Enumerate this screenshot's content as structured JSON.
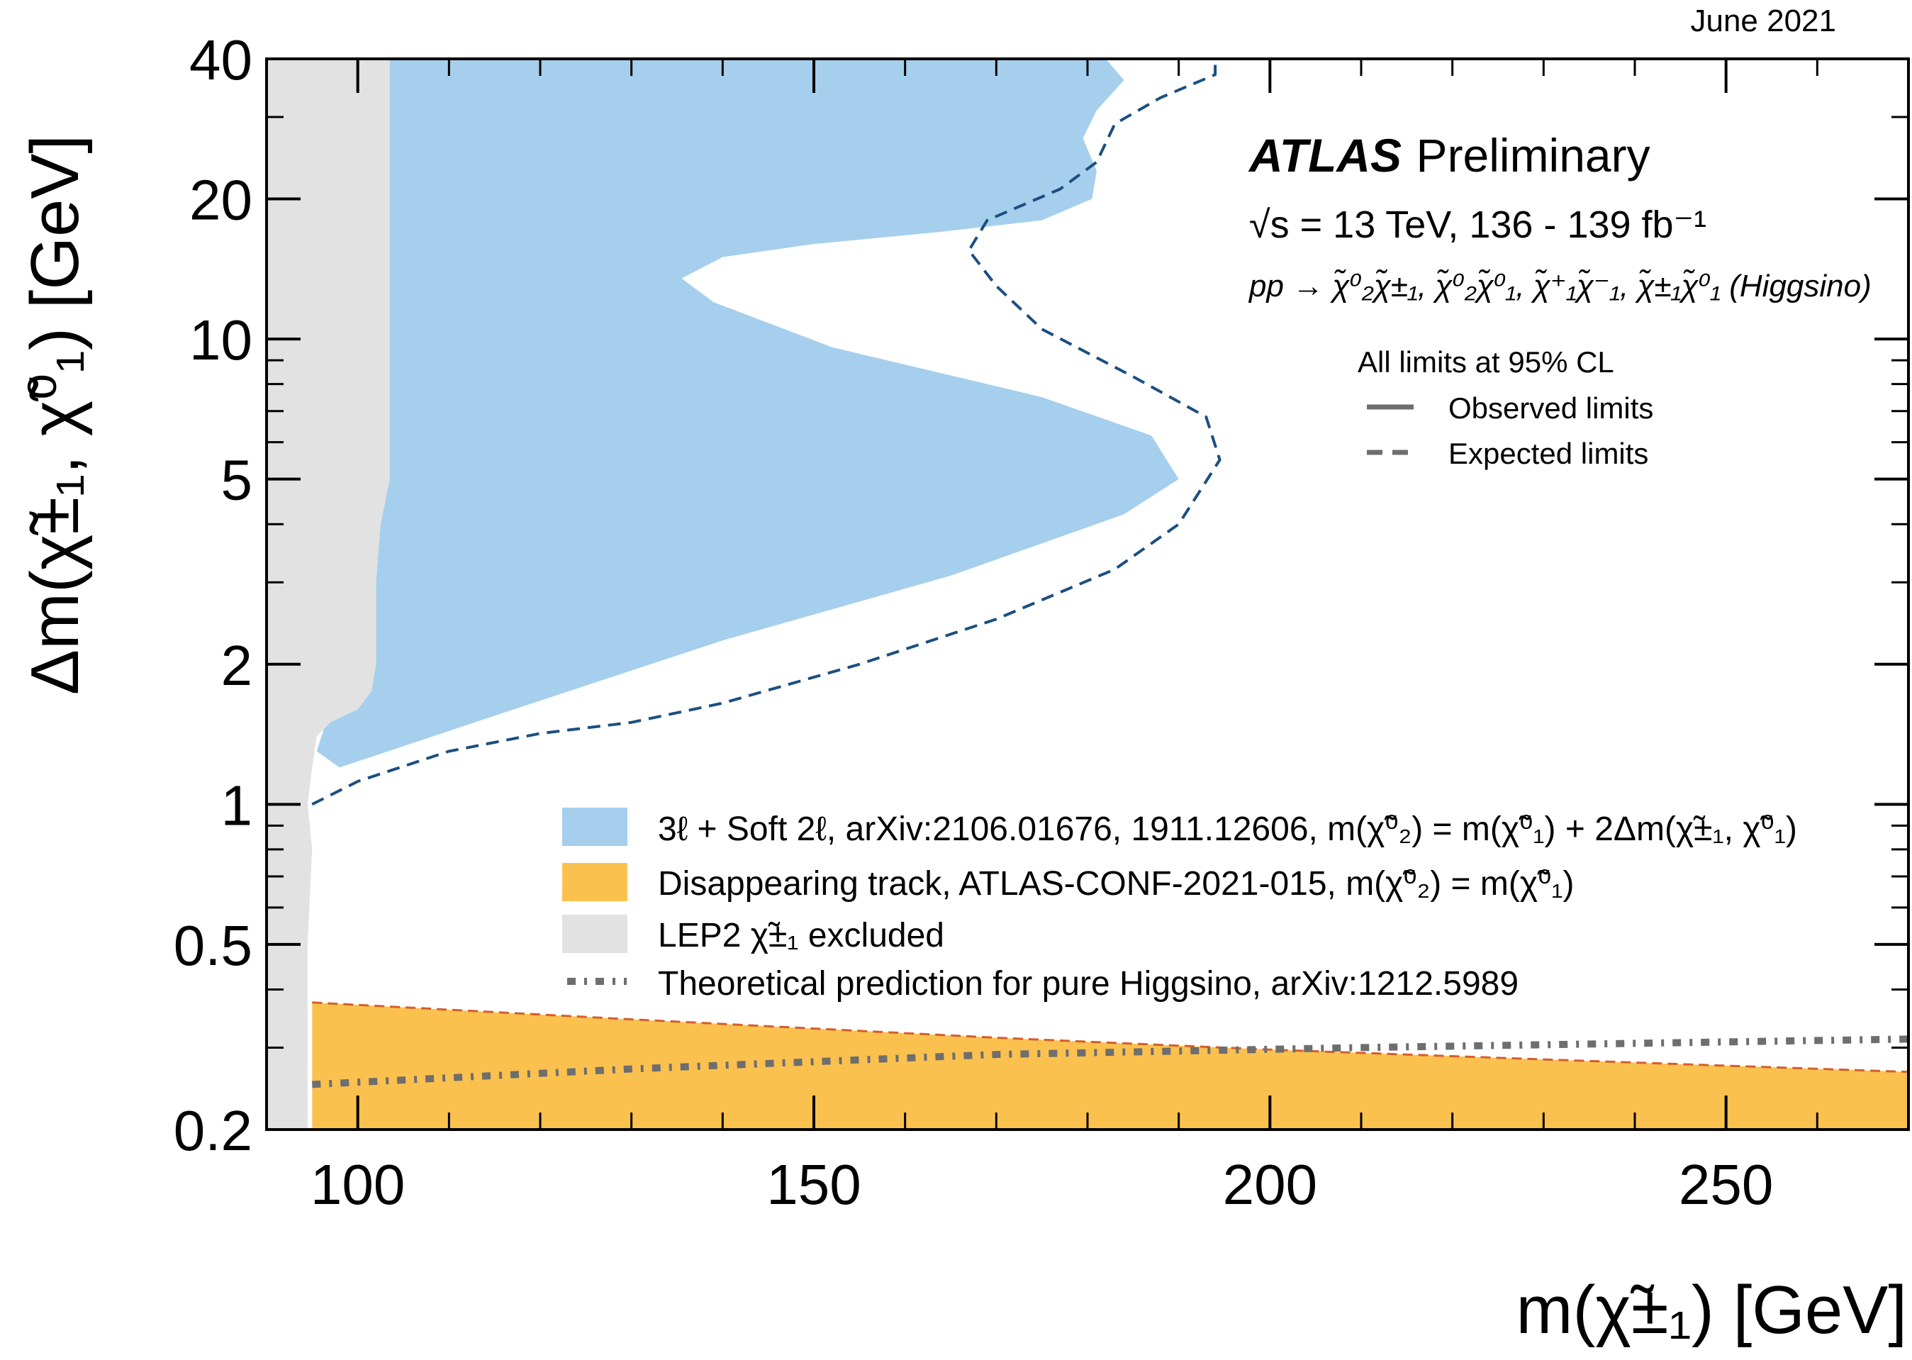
{
  "chart_data": {
    "type": "area",
    "date": "June 2021",
    "experiment": "ATLAS",
    "status": "Preliminary",
    "energy": "√s = 13 TeV, 136 - 139 fb⁻¹",
    "process": "pp → χ̃⁰₂χ̃±₁, χ̃⁰₂χ̃⁰₁, χ̃⁺₁χ̃⁻₁, χ̃±₁χ̃⁰₁ (Higgsino)",
    "cl_title": "All limits at 95% CL",
    "line_legend": [
      {
        "label": "Observed limits",
        "style": "solid"
      },
      {
        "label": "Expected limits",
        "style": "dashed"
      }
    ],
    "xlabel": "m(χ̃±₁) [GeV]",
    "ylabel": "Δm(χ̃±₁, χ̃⁰₁) [GeV]",
    "xlim": [
      90,
      270
    ],
    "ylim": [
      0.2,
      40
    ],
    "yscale": "log",
    "x_ticks": [
      100,
      150,
      200,
      250
    ],
    "x_tick_labels": [
      "100",
      "150",
      "200",
      "250"
    ],
    "y_ticks": [
      0.2,
      0.5,
      1,
      2,
      5,
      10,
      20,
      40
    ],
    "y_tick_labels": [
      "0.2",
      "0.5",
      "1",
      "2",
      "5",
      "10",
      "20",
      "40"
    ],
    "legend": [
      {
        "label": "3ℓ + Soft 2ℓ, arXiv:2106.01676, 1911.12606, m(χ̃⁰₂) = m(χ̃⁰₁) + 2Δm(χ̃±₁, χ̃⁰₁)",
        "color": "#a5cfec",
        "kind": "fill"
      },
      {
        "label": "Disappearing track, ATLAS-CONF-2021-015, m(χ̃⁰₂) = m(χ̃⁰₁)",
        "color": "#fbc14f",
        "kind": "fill"
      },
      {
        "label": "LEP2 χ̃±₁ excluded",
        "color": "#e2e2e2",
        "kind": "fill"
      },
      {
        "label": "Theoretical prediction for pure Higgsino, arXiv:1212.5989",
        "color": "#6e6e6e",
        "kind": "dashdot"
      }
    ],
    "series": [
      {
        "name": "LEP2 excluded",
        "color": "#e2e2e2",
        "points": [
          [
            90,
            0.2
          ],
          [
            94.5,
            0.2
          ],
          [
            94.5,
            0.5
          ],
          [
            95,
            0.8
          ],
          [
            94.5,
            1.0
          ],
          [
            95,
            1.2
          ],
          [
            95.5,
            1.4
          ],
          [
            97,
            1.5
          ],
          [
            100,
            1.6
          ],
          [
            101.5,
            1.75
          ],
          [
            102,
            2.0
          ],
          [
            102,
            3.0
          ],
          [
            102.5,
            4.0
          ],
          [
            103.5,
            5.0
          ],
          [
            103.5,
            40
          ],
          [
            90,
            40
          ]
        ]
      },
      {
        "name": "3l + Soft 2l observed",
        "color": "#a5cfec",
        "points": [
          [
            103.5,
            40
          ],
          [
            182,
            40
          ],
          [
            184,
            36
          ],
          [
            181,
            31
          ],
          [
            179.5,
            27
          ],
          [
            181,
            23
          ],
          [
            180.5,
            20
          ],
          [
            175,
            18
          ],
          [
            164,
            17
          ],
          [
            150,
            16
          ],
          [
            140,
            15
          ],
          [
            135.5,
            13.5
          ],
          [
            139,
            12
          ],
          [
            152,
            9.6
          ],
          [
            175,
            7.5
          ],
          [
            187,
            6.2
          ],
          [
            190,
            5.0
          ],
          [
            184,
            4.2
          ],
          [
            165,
            3.1
          ],
          [
            140,
            2.25
          ],
          [
            115,
            1.55
          ],
          [
            98,
            1.2
          ],
          [
            95.5,
            1.3
          ],
          [
            96.5,
            1.5
          ],
          [
            100,
            1.6
          ],
          [
            101.5,
            1.75
          ],
          [
            102,
            2.0
          ],
          [
            102,
            3.0
          ],
          [
            102.5,
            4.0
          ],
          [
            103.5,
            5.0
          ],
          [
            103.5,
            40
          ]
        ]
      },
      {
        "name": "3l + Soft 2l expected",
        "color": "#1b4f80",
        "style": "dashed",
        "points": [
          [
            95,
            1.0
          ],
          [
            100,
            1.12
          ],
          [
            110,
            1.3
          ],
          [
            120,
            1.42
          ],
          [
            130,
            1.5
          ],
          [
            140,
            1.65
          ],
          [
            155,
            2.0
          ],
          [
            170,
            2.5
          ],
          [
            183,
            3.2
          ],
          [
            190,
            4.0
          ],
          [
            194.5,
            5.5
          ],
          [
            193,
            6.8
          ],
          [
            185,
            8.3
          ],
          [
            175,
            10.5
          ],
          [
            170,
            13
          ],
          [
            167,
            15.5
          ],
          [
            169,
            18
          ],
          [
            177,
            21
          ],
          [
            181,
            24
          ],
          [
            183,
            29
          ],
          [
            188,
            33
          ],
          [
            194,
            37
          ],
          [
            194,
            40
          ]
        ]
      },
      {
        "name": "Disappearing track",
        "color": "#fbc14f",
        "edge_color": "#d35e2c",
        "points": [
          [
            95,
            0.375
          ],
          [
            130,
            0.345
          ],
          [
            170,
            0.315
          ],
          [
            200,
            0.297
          ],
          [
            230,
            0.283
          ],
          [
            270,
            0.266
          ],
          [
            270,
            0.2
          ],
          [
            95,
            0.2
          ]
        ]
      },
      {
        "name": "Pure Higgsino prediction",
        "color": "#6e6e6e",
        "style": "dashdot",
        "points": [
          [
            95,
            0.25
          ],
          [
            130,
            0.27
          ],
          [
            170,
            0.29
          ],
          [
            210,
            0.3
          ],
          [
            270,
            0.313
          ]
        ]
      }
    ]
  }
}
